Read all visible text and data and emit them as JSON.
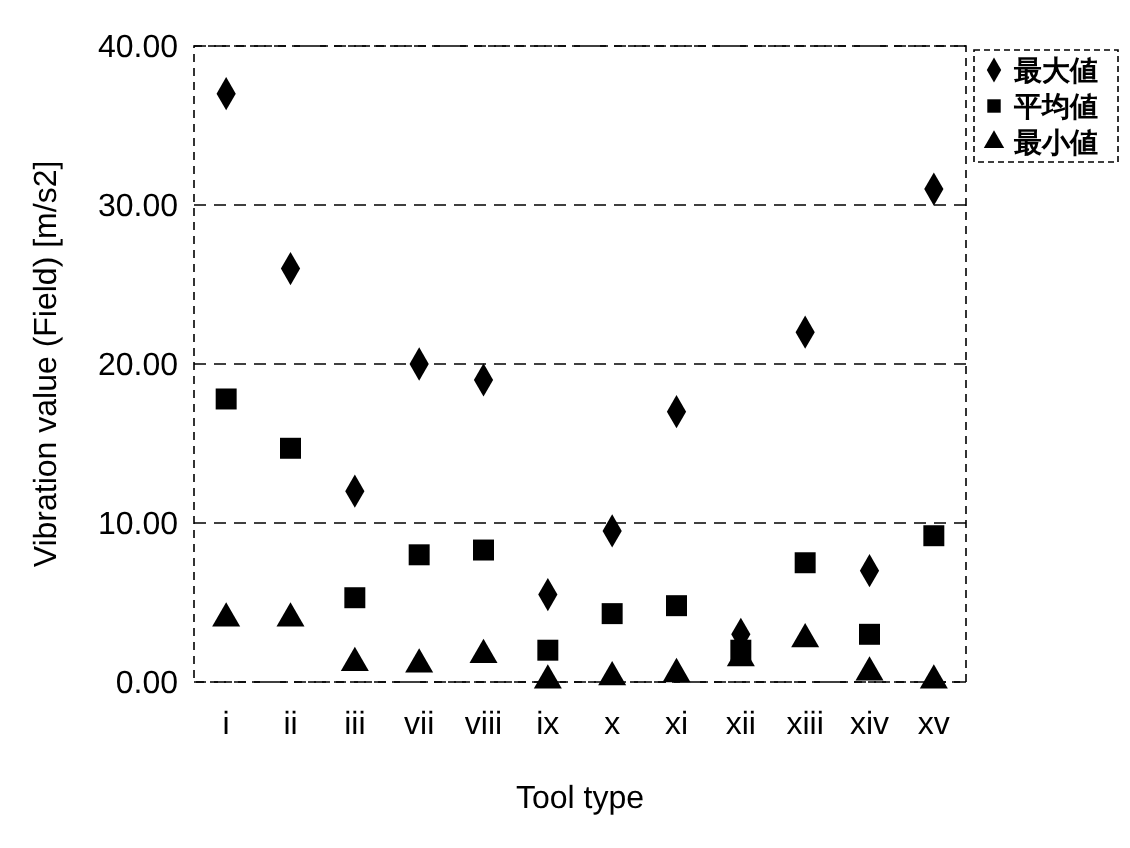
{
  "chart_data": {
    "type": "scatter",
    "xlabel": "Tool type",
    "ylabel": "Vibration value (Field) [m/s2]",
    "categories": [
      "i",
      "ii",
      "iii",
      "vii",
      "viii",
      "ix",
      "x",
      "xi",
      "xii",
      "xiii",
      "xiv",
      "xv"
    ],
    "series": [
      {
        "name": "最大値",
        "color": "#000000",
        "marker": "diamond",
        "values": [
          37,
          26,
          12,
          20,
          19,
          5.5,
          9.5,
          17,
          3,
          22,
          7,
          31
        ]
      },
      {
        "name": "平均値",
        "color": "#000000",
        "marker": "square",
        "values": [
          17.8,
          14.7,
          5.3,
          8,
          8.3,
          2,
          4.3,
          4.8,
          2,
          7.5,
          3,
          9.2
        ]
      },
      {
        "name": "最小値",
        "color": "#000000",
        "marker": "triangle",
        "values": [
          4,
          4,
          1.2,
          1.1,
          1.7,
          0.1,
          0.3,
          0.5,
          1.5,
          2.7,
          0.6,
          0.1
        ]
      }
    ],
    "ylim": [
      0,
      40
    ],
    "yticks": [
      {
        "value": 0,
        "label": "0.00"
      },
      {
        "value": 10,
        "label": "10.00"
      },
      {
        "value": 20,
        "label": "20.00"
      },
      {
        "value": 30,
        "label": "30.00"
      },
      {
        "value": 40,
        "label": "40.00"
      }
    ],
    "grid": "y",
    "legend": "top right"
  }
}
